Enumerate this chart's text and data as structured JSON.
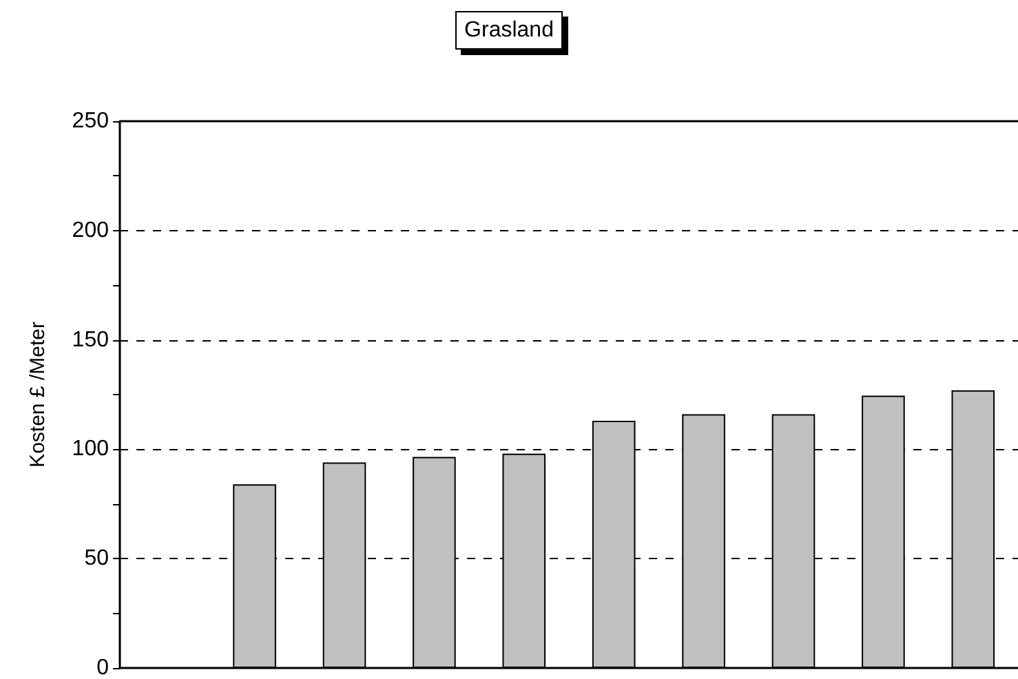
{
  "chart_data": {
    "type": "bar",
    "title": "Grasland",
    "ylabel": "Kosten £ /Meter",
    "categories": [
      null,
      null,
      null,
      null,
      null,
      null,
      null,
      null,
      null,
      null
    ],
    "values": [
      null,
      84,
      94,
      96.5,
      98,
      113,
      116,
      116,
      124.5,
      127
    ],
    "color": "#c0c0c0",
    "ylim": [
      0,
      250
    ],
    "yticks": [
      0,
      {
        "value": 25,
        "label": null
      },
      50,
      {
        "value": 75,
        "label": null
      },
      100,
      {
        "value": 125,
        "label": null
      },
      150,
      {
        "value": 175,
        "label": null
      },
      200,
      {
        "value": 225,
        "label": null
      },
      250
    ],
    "grid": "y",
    "tick_labels": "y"
  }
}
